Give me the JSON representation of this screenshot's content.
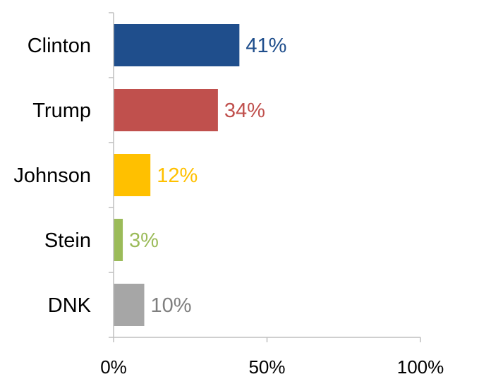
{
  "chart_data": {
    "type": "bar",
    "orientation": "horizontal",
    "categories": [
      "Clinton",
      "Trump",
      "Johnson",
      "Stein",
      "DNK"
    ],
    "values": [
      41,
      34,
      12,
      3,
      10
    ],
    "value_labels": [
      "41%",
      "34%",
      "12%",
      "3%",
      "10%"
    ],
    "colors": [
      "#1f4e8c",
      "#c0504d",
      "#ffc000",
      "#9bbb59",
      "#a6a6a6"
    ],
    "label_colors": [
      "#1f4e8c",
      "#c0504d",
      "#ffc000",
      "#9bbb59",
      "#7f7f7f"
    ],
    "xlim": [
      0,
      100
    ],
    "x_ticks": [
      0,
      50,
      100
    ],
    "x_tick_labels": [
      "0%",
      "50%",
      "100%"
    ],
    "grid": false,
    "legend": "none"
  }
}
